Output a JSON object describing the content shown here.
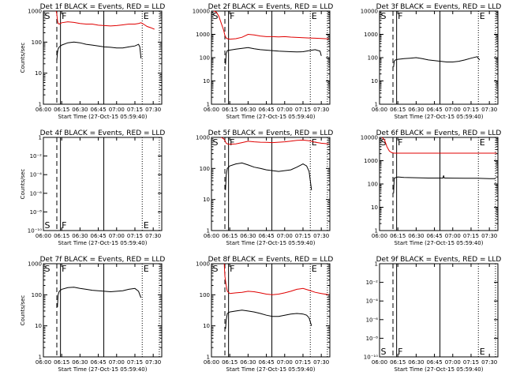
{
  "figure": {
    "background": "#ffffff",
    "event_color": "#000000",
    "lld_color": "#e00000"
  },
  "chart_data": [
    {
      "type": "line",
      "title": "Det 1f BLACK = Events, RED = LLD",
      "xlabel": "Start Time (27-Oct-15 05:59:40)",
      "ylabel": "Counts/sec",
      "x_unit": "minutes since 06:00",
      "xlim": [
        0,
        97
      ],
      "x_tick_labels": [
        "06:00",
        "06:15",
        "06:30",
        "06:45",
        "07:00",
        "07:15",
        "07:30"
      ],
      "yscale": "log",
      "ylim": [
        1,
        1000
      ],
      "y_tick_labels": [
        "1",
        "10",
        "100",
        "1000"
      ],
      "markers": [
        {
          "label": "S",
          "x": 0,
          "style": "solid"
        },
        {
          "label": "",
          "x": 11,
          "style": "dashed"
        },
        {
          "label": "F",
          "x": 14,
          "style": "solid"
        },
        {
          "label": "",
          "x": 49.5,
          "style": "solid"
        },
        {
          "label": "E",
          "x": 81,
          "style": "dotted"
        },
        {
          "label": "",
          "x": 95,
          "style": "dotted"
        }
      ],
      "series": [
        {
          "color": "#e00000",
          "x": [
            10.5,
            11,
            11.5,
            12,
            13,
            15,
            20,
            25,
            30,
            35,
            40,
            45,
            50,
            55,
            60,
            65,
            70,
            75,
            78,
            80,
            82,
            85,
            88,
            91
          ],
          "y": [
            1000,
            800,
            500,
            400,
            380,
            420,
            450,
            430,
            400,
            380,
            380,
            350,
            340,
            330,
            340,
            360,
            380,
            380,
            400,
            420,
            380,
            320,
            290,
            260
          ]
        },
        {
          "color": "#000000",
          "x": [
            11,
            11.5,
            12,
            13,
            15,
            20,
            25,
            30,
            35,
            40,
            45,
            50,
            55,
            60,
            65,
            70,
            75,
            78,
            79,
            80
          ],
          "y": [
            25,
            45,
            60,
            70,
            80,
            95,
            100,
            95,
            85,
            80,
            75,
            70,
            68,
            65,
            65,
            70,
            75,
            85,
            70,
            30
          ]
        }
      ]
    },
    {
      "type": "line",
      "title": "Det 2f BLACK = Events, RED = LLD",
      "xlabel": "Start Time (27-Oct-15 05:59:40)",
      "ylabel": "",
      "x_unit": "minutes since 06:00",
      "xlim": [
        0,
        97
      ],
      "x_tick_labels": [
        "06:00",
        "06:15",
        "06:30",
        "06:45",
        "07:00",
        "07:15",
        "07:30"
      ],
      "yscale": "log",
      "ylim": [
        1,
        10000
      ],
      "y_tick_labels": [
        "1",
        "10",
        "100",
        "1000",
        "10000"
      ],
      "markers": [
        {
          "label": "S",
          "x": 0,
          "style": "solid"
        },
        {
          "label": "",
          "x": 11,
          "style": "dashed"
        },
        {
          "label": "F",
          "x": 14,
          "style": "solid"
        },
        {
          "label": "",
          "x": 49.5,
          "style": "solid"
        },
        {
          "label": "E",
          "x": 81,
          "style": "dotted"
        },
        {
          "label": "",
          "x": 95,
          "style": "dotted"
        }
      ],
      "series": [
        {
          "color": "#e00000",
          "x": [
            2,
            4,
            6,
            8,
            10,
            11,
            12,
            13,
            15,
            20,
            25,
            30,
            35,
            40,
            45,
            50,
            55,
            60,
            65,
            70,
            75,
            80,
            85,
            90,
            96
          ],
          "y": [
            10000,
            9000,
            6000,
            3000,
            1500,
            900,
            700,
            650,
            620,
            650,
            750,
            1000,
            950,
            850,
            800,
            800,
            780,
            800,
            760,
            740,
            720,
            700,
            680,
            660,
            640
          ]
        },
        {
          "color": "#000000",
          "x": [
            11.5,
            12,
            13,
            15,
            20,
            25,
            30,
            35,
            40,
            45,
            50,
            55,
            60,
            65,
            70,
            75,
            80,
            85,
            89,
            90
          ],
          "y": [
            50,
            150,
            200,
            210,
            230,
            250,
            270,
            240,
            220,
            210,
            200,
            190,
            185,
            180,
            175,
            180,
            200,
            220,
            190,
            120
          ]
        }
      ]
    },
    {
      "type": "line",
      "title": "Det 3f BLACK = Events, RED = LLD",
      "xlabel": "Start Time (27-Oct-15 05:59:40)",
      "ylabel": "",
      "x_unit": "minutes since 06:00",
      "xlim": [
        0,
        97
      ],
      "x_tick_labels": [
        "06:00",
        "06:15",
        "06:30",
        "06:45",
        "07:00",
        "07:15",
        "07:30"
      ],
      "yscale": "log",
      "ylim": [
        1,
        10000
      ],
      "y_tick_labels": [
        "1",
        "10",
        "100",
        "1000",
        "10000"
      ],
      "markers": [
        {
          "label": "S",
          "x": 0,
          "style": "solid"
        },
        {
          "label": "",
          "x": 11,
          "style": "dashed"
        },
        {
          "label": "F",
          "x": 14,
          "style": "solid"
        },
        {
          "label": "",
          "x": 49.5,
          "style": "solid"
        },
        {
          "label": "E",
          "x": 81,
          "style": "dotted"
        },
        {
          "label": "",
          "x": 95,
          "style": "dotted"
        }
      ],
      "series": [
        {
          "color": "#000000",
          "x": [
            11.5,
            12,
            13,
            15,
            20,
            25,
            30,
            35,
            40,
            45,
            50,
            55,
            60,
            65,
            70,
            75,
            80,
            82
          ],
          "y": [
            40,
            70,
            80,
            85,
            90,
            95,
            100,
            90,
            80,
            75,
            70,
            65,
            65,
            70,
            80,
            95,
            110,
            80
          ]
        }
      ]
    },
    {
      "type": "line",
      "title": "Det 4f BLACK = Events, RED = LLD",
      "xlabel": "Start Time (27-Oct-15 05:59:40)",
      "ylabel": "Counts/sec",
      "x_unit": "minutes since 06:00",
      "xlim": [
        0,
        97
      ],
      "x_tick_labels": [
        "06:00",
        "06:15",
        "06:30",
        "06:45",
        "07:00",
        "07:15",
        "07:30"
      ],
      "yscale": "log",
      "ylim": [
        1e-10,
        1
      ],
      "y_tick_labels": [
        "10⁻¹⁰",
        "10⁻⁸",
        "10⁻⁶",
        "10⁻⁴",
        "10⁻²",
        "1"
      ],
      "markers": [
        {
          "label": "S",
          "x": 0,
          "style": "solid"
        },
        {
          "label": "",
          "x": 11,
          "style": "dashed"
        },
        {
          "label": "F",
          "x": 14,
          "style": "solid"
        },
        {
          "label": "",
          "x": 49.5,
          "style": "solid"
        },
        {
          "label": "E",
          "x": 81,
          "style": "dotted"
        },
        {
          "label": "",
          "x": 95,
          "style": "dotted"
        }
      ],
      "series": []
    },
    {
      "type": "line",
      "title": "Det 5f BLACK = Events, RED = LLD",
      "xlabel": "Start Time (27-Oct-15 05:59:40)",
      "ylabel": "",
      "x_unit": "minutes since 06:00",
      "xlim": [
        0,
        97
      ],
      "x_tick_labels": [
        "06:00",
        "06:15",
        "06:30",
        "06:45",
        "07:00",
        "07:15",
        "07:30"
      ],
      "yscale": "log",
      "ylim": [
        1,
        1000
      ],
      "y_tick_labels": [
        "1",
        "10",
        "100",
        "1000"
      ],
      "markers": [
        {
          "label": "S",
          "x": 0,
          "style": "solid"
        },
        {
          "label": "",
          "x": 11,
          "style": "dashed"
        },
        {
          "label": "F",
          "x": 14,
          "style": "solid"
        },
        {
          "label": "",
          "x": 49.5,
          "style": "solid"
        },
        {
          "label": "E",
          "x": 81,
          "style": "dotted"
        },
        {
          "label": "",
          "x": 95,
          "style": "dotted"
        }
      ],
      "series": [
        {
          "color": "#e00000",
          "x": [
            8,
            10,
            11,
            12,
            14,
            20,
            25,
            30,
            35,
            40,
            45,
            50,
            55,
            60,
            65,
            70,
            75,
            80,
            85,
            90,
            96
          ],
          "y": [
            1000,
            900,
            800,
            650,
            600,
            620,
            680,
            750,
            720,
            700,
            690,
            680,
            700,
            720,
            760,
            800,
            820,
            780,
            700,
            650,
            620
          ]
        },
        {
          "color": "#000000",
          "x": [
            11.5,
            12,
            13,
            15,
            20,
            25,
            30,
            35,
            40,
            45,
            50,
            55,
            60,
            65,
            70,
            75,
            78,
            80,
            82
          ],
          "y": [
            20,
            60,
            100,
            120,
            140,
            150,
            130,
            110,
            100,
            90,
            85,
            80,
            85,
            90,
            110,
            140,
            120,
            80,
            20
          ]
        }
      ]
    },
    {
      "type": "line",
      "title": "Det 6f BLACK = Events, RED = LLD",
      "xlabel": "Start Time (27-Oct-15 05:59:40)",
      "ylabel": "",
      "x_unit": "minutes since 06:00",
      "xlim": [
        0,
        97
      ],
      "x_tick_labels": [
        "06:00",
        "06:15",
        "06:30",
        "06:45",
        "07:00",
        "07:15",
        "07:30"
      ],
      "yscale": "log",
      "ylim": [
        1,
        10000
      ],
      "y_tick_labels": [
        "1",
        "10",
        "100",
        "1000",
        "10000"
      ],
      "markers": [
        {
          "label": "S",
          "x": 0,
          "style": "solid"
        },
        {
          "label": "",
          "x": 11,
          "style": "dashed"
        },
        {
          "label": "F",
          "x": 14,
          "style": "solid"
        },
        {
          "label": "",
          "x": 49.5,
          "style": "solid"
        },
        {
          "label": "E",
          "x": 81,
          "style": "dotted"
        },
        {
          "label": "",
          "x": 95,
          "style": "dotted"
        }
      ],
      "series": [
        {
          "color": "#e00000",
          "x": [
            2,
            4,
            6,
            8,
            10,
            12,
            15,
            20,
            30,
            40,
            50,
            60,
            70,
            80,
            90,
            96
          ],
          "y": [
            10000,
            8000,
            4000,
            2600,
            2200,
            2100,
            2100,
            2100,
            2100,
            2100,
            2100,
            2100,
            2100,
            2100,
            2100,
            2100
          ]
        },
        {
          "color": "#000000",
          "x": [
            11.5,
            12,
            15,
            20,
            30,
            40,
            45,
            50,
            52,
            52.5,
            53,
            55,
            60,
            70,
            80,
            90,
            95
          ],
          "y": [
            40,
            180,
            200,
            190,
            185,
            180,
            180,
            180,
            180,
            230,
            180,
            180,
            178,
            175,
            175,
            170,
            170
          ]
        }
      ]
    },
    {
      "type": "line",
      "title": "Det 7f BLACK = Events, RED = LLD",
      "xlabel": "Start Time (27-Oct-15 05:59:40)",
      "ylabel": "Counts/sec",
      "x_unit": "minutes since 06:00",
      "xlim": [
        0,
        97
      ],
      "x_tick_labels": [
        "06:00",
        "06:15",
        "06:30",
        "06:45",
        "07:00",
        "07:15",
        "07:30"
      ],
      "yscale": "log",
      "ylim": [
        1,
        1000
      ],
      "y_tick_labels": [
        "1",
        "10",
        "100",
        "1000"
      ],
      "markers": [
        {
          "label": "S",
          "x": 0,
          "style": "solid"
        },
        {
          "label": "",
          "x": 11,
          "style": "dashed"
        },
        {
          "label": "F",
          "x": 14,
          "style": "solid"
        },
        {
          "label": "",
          "x": 49.5,
          "style": "solid"
        },
        {
          "label": "E",
          "x": 81,
          "style": "dotted"
        },
        {
          "label": "",
          "x": 95,
          "style": "dotted"
        }
      ],
      "series": [
        {
          "color": "#000000",
          "x": [
            11.5,
            12,
            13,
            15,
            20,
            25,
            30,
            35,
            40,
            45,
            50,
            55,
            60,
            65,
            70,
            75,
            78,
            79,
            80
          ],
          "y": [
            40,
            100,
            130,
            150,
            170,
            175,
            160,
            150,
            140,
            135,
            130,
            125,
            130,
            135,
            150,
            160,
            130,
            100,
            80
          ]
        }
      ]
    },
    {
      "type": "line",
      "title": "Det 8f BLACK = Events, RED = LLD",
      "xlabel": "Start Time (27-Oct-15 05:59:40)",
      "ylabel": "",
      "x_unit": "minutes since 06:00",
      "xlim": [
        0,
        97
      ],
      "x_tick_labels": [
        "06:00",
        "06:15",
        "06:30",
        "06:45",
        "07:00",
        "07:15",
        "07:30"
      ],
      "yscale": "log",
      "ylim": [
        1,
        1000
      ],
      "y_tick_labels": [
        "1",
        "10",
        "100",
        "1000"
      ],
      "markers": [
        {
          "label": "S",
          "x": 0,
          "style": "solid"
        },
        {
          "label": "",
          "x": 11,
          "style": "dashed"
        },
        {
          "label": "F",
          "x": 14,
          "style": "solid"
        },
        {
          "label": "",
          "x": 49.5,
          "style": "solid"
        },
        {
          "label": "E",
          "x": 81,
          "style": "dotted"
        },
        {
          "label": "",
          "x": 95,
          "style": "dotted"
        }
      ],
      "series": [
        {
          "color": "#e00000",
          "x": [
            10.5,
            11,
            12,
            13,
            15,
            20,
            25,
            30,
            35,
            40,
            45,
            50,
            55,
            60,
            65,
            70,
            75,
            80,
            85,
            90,
            96
          ],
          "y": [
            1000,
            400,
            200,
            130,
            110,
            115,
            120,
            130,
            125,
            115,
            105,
            100,
            105,
            115,
            130,
            150,
            160,
            140,
            120,
            110,
            100
          ]
        },
        {
          "color": "#000000",
          "x": [
            11.5,
            12,
            13,
            15,
            20,
            25,
            30,
            35,
            40,
            45,
            50,
            55,
            60,
            65,
            70,
            75,
            78,
            80,
            82
          ],
          "y": [
            8,
            15,
            25,
            28,
            30,
            32,
            30,
            28,
            25,
            22,
            20,
            20,
            22,
            24,
            25,
            24,
            22,
            18,
            10
          ]
        }
      ]
    },
    {
      "type": "line",
      "title": "Det 9f BLACK = Events, RED = LLD",
      "xlabel": "Start Time (27-Oct-15 05:59:40)",
      "ylabel": "",
      "x_unit": "minutes since 06:00",
      "xlim": [
        0,
        97
      ],
      "x_tick_labels": [
        "06:00",
        "06:15",
        "06:30",
        "06:45",
        "07:00",
        "07:15",
        "07:30"
      ],
      "yscale": "log",
      "ylim": [
        1e-10,
        1
      ],
      "y_tick_labels": [
        "10⁻¹⁰",
        "10⁻⁸",
        "10⁻⁶",
        "10⁻⁴",
        "10⁻²",
        "1"
      ],
      "markers": [
        {
          "label": "S",
          "x": 0,
          "style": "solid"
        },
        {
          "label": "",
          "x": 11,
          "style": "dashed"
        },
        {
          "label": "F",
          "x": 14,
          "style": "solid"
        },
        {
          "label": "",
          "x": 49.5,
          "style": "solid"
        },
        {
          "label": "E",
          "x": 81,
          "style": "dotted"
        },
        {
          "label": "",
          "x": 95,
          "style": "dotted"
        }
      ],
      "series": []
    }
  ]
}
